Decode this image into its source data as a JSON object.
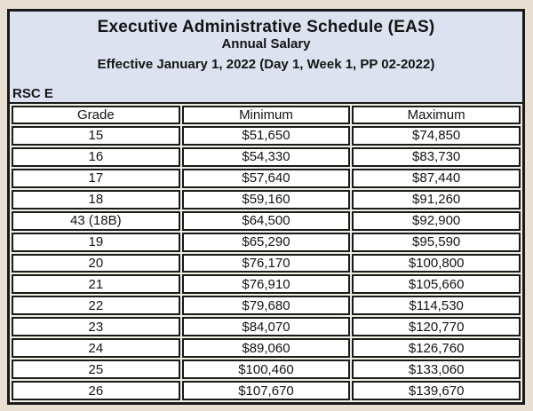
{
  "header": {
    "title": "Executive Administrative Schedule (EAS)",
    "subtitle": "Annual Salary",
    "effective_line": "Effective January 1, 2022 (Day 1, Week 1, PP 02-2022)",
    "rsc_label": "RSC E"
  },
  "table": {
    "columns": [
      "Grade",
      "Minimum",
      "Maximum"
    ],
    "rows": [
      [
        "15",
        "$51,650",
        "$74,850"
      ],
      [
        "16",
        "$54,330",
        "$83,730"
      ],
      [
        "17",
        "$57,640",
        "$87,440"
      ],
      [
        "18",
        "$59,160",
        "$91,260"
      ],
      [
        "43 (18B)",
        "$64,500",
        "$92,900"
      ],
      [
        "19",
        "$65,290",
        "$95,590"
      ],
      [
        "20",
        "$76,170",
        "$100,800"
      ],
      [
        "21",
        "$76,910",
        "$105,660"
      ],
      [
        "22",
        "$79,680",
        "$114,530"
      ],
      [
        "23",
        "$84,070",
        "$120,770"
      ],
      [
        "24",
        "$89,060",
        "$126,760"
      ],
      [
        "25",
        "$100,460",
        "$133,060"
      ],
      [
        "26",
        "$107,670",
        "$139,670"
      ]
    ]
  },
  "colors": {
    "page_background": "#e7dfd1",
    "header_background": "#dce2f0",
    "cell_background": "#ffffff",
    "gap": "#f0ede5",
    "border": "#1a1a1a",
    "text": "#141414"
  }
}
